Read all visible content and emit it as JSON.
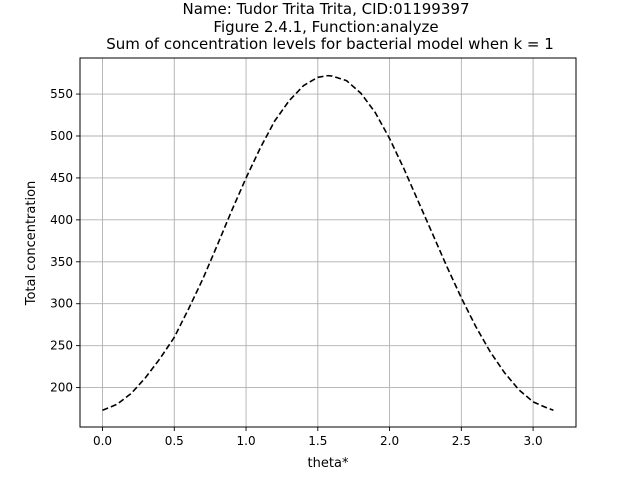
{
  "chart_data": {
    "type": "line",
    "title_lines": [
      "Name: Tudor Trita Trita, CID:01199397",
      "Figure 2.4.1, Function:analyze",
      "Sum of concentration levels for bacterial model when k = 1"
    ],
    "xlabel": "theta*",
    "ylabel": "Total concentration",
    "xlim": [
      -0.157,
      3.299
    ],
    "ylim": [
      153,
      593
    ],
    "xticks": [
      0.0,
      0.5,
      1.0,
      1.5,
      2.0,
      2.5,
      3.0
    ],
    "xtick_labels": [
      "0.0",
      "0.5",
      "1.0",
      "1.5",
      "2.0",
      "2.5",
      "3.0"
    ],
    "yticks": [
      200,
      250,
      300,
      350,
      400,
      450,
      500,
      550
    ],
    "ytick_labels": [
      "200",
      "250",
      "300",
      "350",
      "400",
      "450",
      "500",
      "550"
    ],
    "grid": true,
    "series": [
      {
        "color": "#000000",
        "linestyle": "dashed",
        "x": [
          0.0,
          0.1,
          0.2,
          0.3,
          0.4,
          0.5,
          0.6,
          0.7,
          0.8,
          0.9,
          1.0,
          1.1,
          1.2,
          1.3,
          1.4,
          1.5,
          1.5708,
          1.6,
          1.7,
          1.8,
          1.9,
          2.0,
          2.1,
          2.2,
          2.3,
          2.4,
          2.5,
          2.6,
          2.7,
          2.8,
          2.9,
          3.0,
          3.1,
          3.1416
        ],
        "y": [
          173.0,
          180.0,
          193.0,
          212.0,
          234.5,
          260.0,
          294.0,
          330.0,
          370.0,
          411.0,
          450.0,
          486.0,
          518.0,
          542.0,
          560.0,
          570.0,
          572.0,
          571.5,
          566.0,
          551.0,
          528.0,
          497.0,
          461.0,
          422.0,
          383.0,
          344.0,
          307.0,
          273.0,
          243.0,
          218.0,
          197.5,
          183.0,
          175.5,
          173.0
        ]
      }
    ]
  }
}
